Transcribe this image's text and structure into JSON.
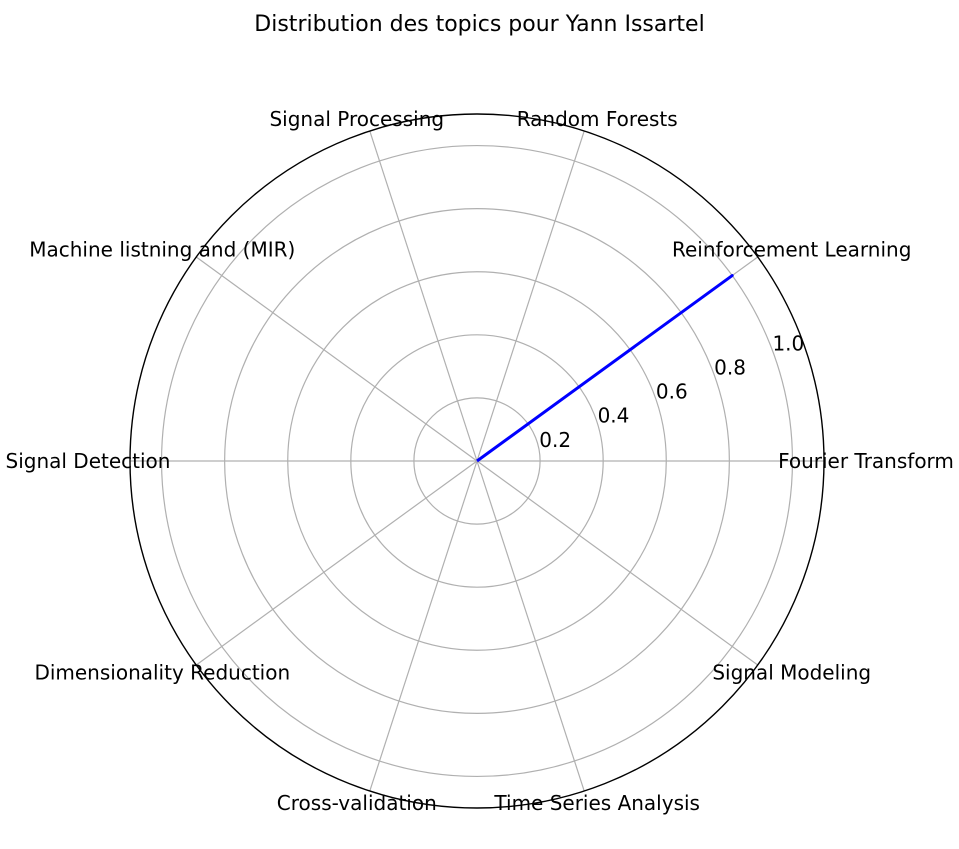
{
  "chart_data": {
    "type": "radar",
    "title": "Distribution des topics pour Yann Issartel",
    "categories": [
      "Fourier Transform",
      "Reinforcement Learning",
      "Random Forests",
      "Signal Processing",
      "Machine listning and (MIR)",
      "Signal Detection",
      "Dimensionality Reduction",
      "Cross-validation",
      "Time Series Analysis",
      "Signal Modeling"
    ],
    "series": [
      {
        "values": [
          0,
          1.0,
          0,
          0,
          0,
          0,
          0,
          0,
          0,
          0
        ],
        "color": "#0000ff"
      }
    ],
    "rlim": [
      0,
      1.1
    ],
    "r_ticks": [
      0.2,
      0.4,
      0.6,
      0.8,
      1.0
    ],
    "r_tick_labels": [
      "0.2",
      "0.4",
      "0.6",
      "0.8",
      "1.0"
    ],
    "grid": true
  }
}
